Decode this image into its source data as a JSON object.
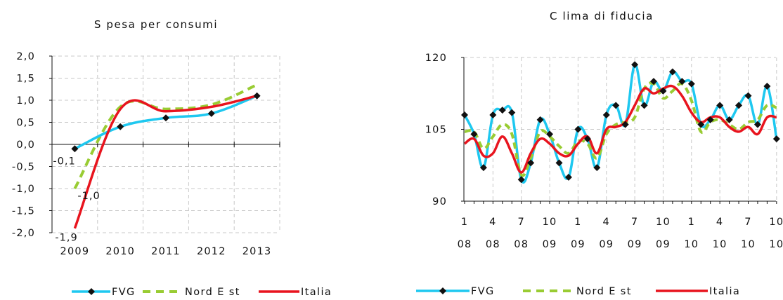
{
  "colors": {
    "fvg": "#1ec8f0",
    "nord_est": "#99cc33",
    "italia": "#e8141e",
    "marker": "#111111"
  },
  "chart_data": [
    {
      "type": "line",
      "title": "S pesa per consumi",
      "categories": [
        "2009",
        "2010",
        "2011",
        "2012",
        "2013"
      ],
      "ylim": [
        -2.0,
        2.0
      ],
      "ytick_labels": [
        "2,0",
        "1,5",
        "1,0",
        "0,5",
        "0,0",
        "-0,5",
        "-1,0",
        "-1,5",
        "-2,0"
      ],
      "grid": true,
      "legend_position": "bottom",
      "series": [
        {
          "name": "FVG",
          "values": [
            -0.1,
            0.4,
            0.6,
            0.7,
            1.1
          ]
        },
        {
          "name": "Nord E st",
          "values": [
            -1.0,
            0.85,
            0.8,
            0.9,
            1.35
          ]
        },
        {
          "name": "Italia",
          "values": [
            -1.9,
            0.8,
            0.75,
            0.85,
            1.1
          ]
        }
      ],
      "annotations": [
        "-0,1",
        "-1,0",
        "-1,9"
      ]
    },
    {
      "type": "line",
      "title": "C lima di fiducia",
      "x_month_labels": [
        "1",
        "4",
        "7",
        "10",
        "1",
        "4",
        "7",
        "10",
        "1",
        "4",
        "7",
        "10"
      ],
      "x_year_labels": [
        "08",
        "08",
        "08",
        "09",
        "09",
        "09",
        "09",
        "09",
        "10",
        "10",
        "10",
        "10"
      ],
      "ylim": [
        90,
        120
      ],
      "ytick_labels": [
        "120",
        "105",
        "90"
      ],
      "grid": true,
      "legend_position": "bottom",
      "series": [
        {
          "name": "FVG",
          "values": [
            108,
            104,
            97,
            108,
            109,
            108.5,
            94.5,
            98,
            107,
            104,
            98,
            95,
            105,
            103,
            97,
            108,
            110,
            106,
            118.5,
            110,
            115,
            113,
            117,
            115,
            114.5,
            106,
            107,
            110,
            107,
            110,
            112,
            106,
            114,
            103
          ]
        },
        {
          "name": "Nord E st",
          "values": [
            104.5,
            104.5,
            101,
            103.5,
            106,
            104,
            95.5,
            99,
            104.5,
            103.5,
            101.5,
            100,
            102.5,
            102,
            99,
            104,
            106,
            106.5,
            107.5,
            113.5,
            114.5,
            111.5,
            113,
            114.5,
            111,
            104.5,
            106.5,
            107,
            106,
            105,
            106.5,
            107,
            110,
            109.5
          ]
        },
        {
          "name": "Italia",
          "values": [
            102,
            103,
            99.5,
            100,
            103.5,
            100,
            96,
            100,
            103,
            102,
            100,
            99.5,
            102,
            103.5,
            100,
            105,
            105.5,
            106.5,
            110,
            113.5,
            112.5,
            113.5,
            114,
            112,
            108.5,
            106.5,
            107.5,
            107.5,
            105.5,
            104.5,
            105.5,
            104,
            107.5,
            107.5
          ]
        }
      ]
    }
  ]
}
